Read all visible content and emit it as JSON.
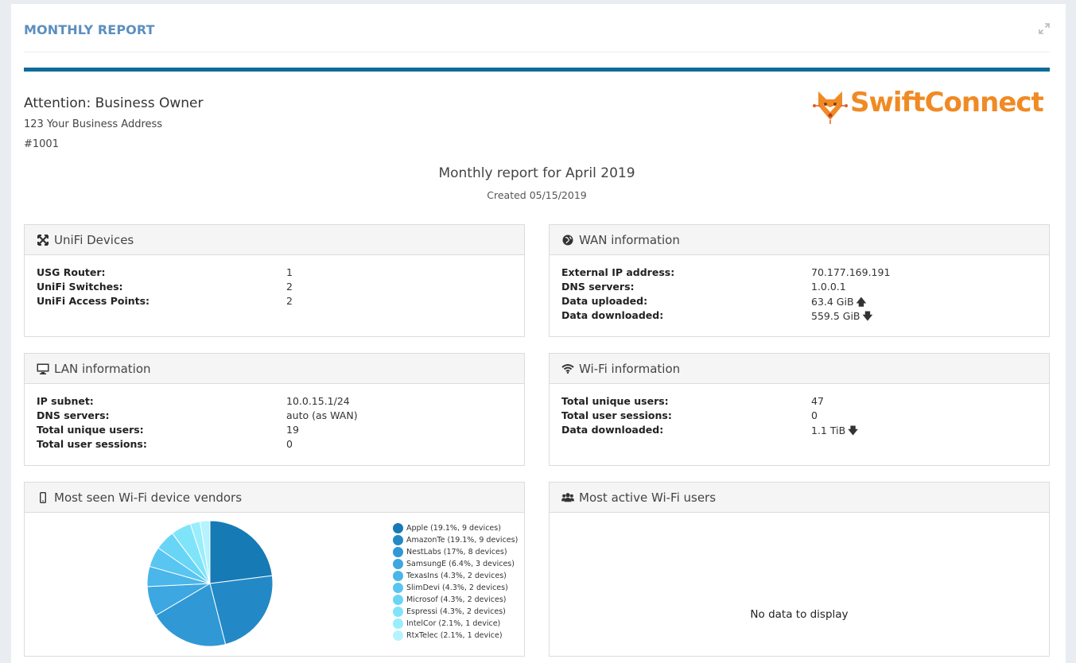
{
  "header": {
    "title": "MONTHLY REPORT",
    "expand_icon": "expand-arrows-icon",
    "accent_color": "#0f6c9a"
  },
  "recipient": {
    "attention": "Attention: Business Owner",
    "address": "123 Your Business Address",
    "account": "#1001"
  },
  "logo": {
    "text": "SwiftConnect",
    "color": "#f08a24"
  },
  "report": {
    "heading": "Monthly report for April 2019",
    "created": "Created 05/15/2019"
  },
  "unifi_devices": {
    "title": "UniFi Devices",
    "icon": "network-icon",
    "rows": [
      {
        "label": "USG Router:",
        "value": "1"
      },
      {
        "label": "UniFi Switches:",
        "value": "2"
      },
      {
        "label": "UniFi Access Points:",
        "value": "2"
      }
    ]
  },
  "wan": {
    "title": "WAN information",
    "icon": "globe-icon",
    "rows": [
      {
        "label": "External IP address:",
        "value": "70.177.169.191"
      },
      {
        "label": "DNS servers:",
        "value": "1.0.0.1"
      },
      {
        "label": "Data uploaded:",
        "value": "63.4 GiB",
        "arrow": "arrow-up-icon"
      },
      {
        "label": "Data downloaded:",
        "value": "559.5 GiB",
        "arrow": "arrow-down-icon"
      }
    ]
  },
  "lan": {
    "title": "LAN information",
    "icon": "monitor-icon",
    "rows": [
      {
        "label": "IP subnet:",
        "value": "10.0.15.1/24"
      },
      {
        "label": "DNS servers:",
        "value": "auto (as WAN)"
      },
      {
        "label": "Total unique users:",
        "value": "19"
      },
      {
        "label": "Total user sessions:",
        "value": "0"
      }
    ]
  },
  "wifi": {
    "title": "Wi-Fi information",
    "icon": "wifi-icon",
    "rows": [
      {
        "label": "Total unique users:",
        "value": "47"
      },
      {
        "label": "Total user sessions:",
        "value": "0"
      },
      {
        "label": "Data downloaded:",
        "value": "1.1 TiB",
        "arrow": "arrow-down-icon"
      }
    ]
  },
  "vendors": {
    "title": "Most seen Wi-Fi device vendors",
    "icon": "mobile-icon",
    "legend": [
      "Apple (19.1%, 9 devices)",
      "AmazonTe (19.1%, 9 devices)",
      "NestLabs (17%, 8 devices)",
      "SamsungE (6.4%, 3 devices)",
      "TexasIns (4.3%, 2 devices)",
      "SlimDevi (4.3%, 2 devices)",
      "Microsof (4.3%, 2 devices)",
      "Espressi (4.3%, 2 devices)",
      "IntelCor (2.1%, 1 device)",
      "RtxTelec (2.1%, 1 device)"
    ]
  },
  "active_users": {
    "title": "Most active Wi-Fi users",
    "icon": "users-icon",
    "empty_text": "No data to display"
  },
  "chart_data": {
    "type": "pie",
    "categories": [
      "Apple",
      "AmazonTe",
      "NestLabs",
      "SamsungE",
      "TexasIns",
      "SlimDevi",
      "Microsof",
      "Espressi",
      "IntelCor",
      "RtxTelec"
    ],
    "values": [
      19.1,
      19.1,
      17,
      6.4,
      4.3,
      4.3,
      4.3,
      4.3,
      2.1,
      2.1
    ],
    "devices": [
      9,
      9,
      8,
      3,
      2,
      2,
      2,
      2,
      1,
      1
    ],
    "colors": [
      "#167ab5",
      "#2389c6",
      "#2f98d5",
      "#3ca7e1",
      "#4ab6ea",
      "#58c6f1",
      "#68d5f6",
      "#7fe4fa",
      "#98eefc",
      "#b5f4fe"
    ],
    "legend_position": "right"
  }
}
